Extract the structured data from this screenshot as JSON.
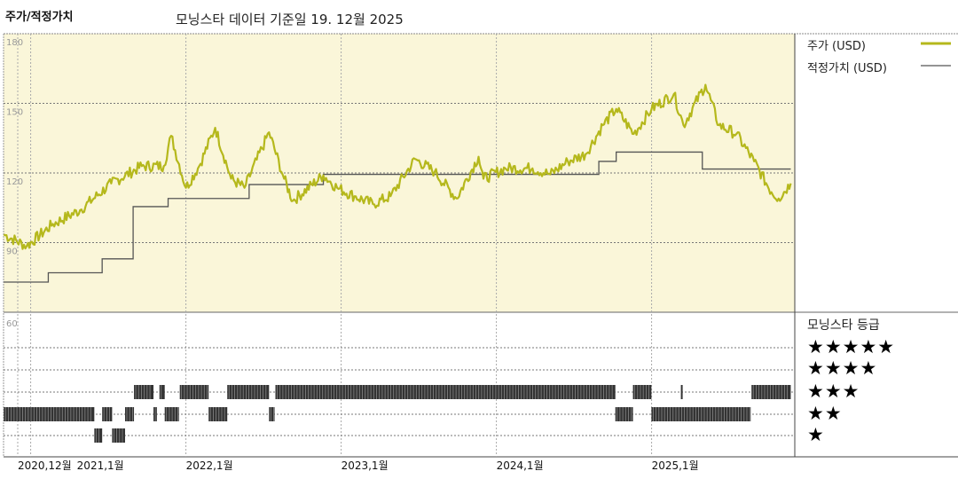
{
  "header": {
    "title": "주가/적정가치",
    "subtitle": "모닝스타 데이터 기준일 19. 12월 2025"
  },
  "legend": {
    "price": "주가 (USD)",
    "fair": "적정가치 (USD)",
    "rating_title": "모닝스타 등급"
  },
  "colors": {
    "price": "#b5b81c",
    "fair": "#555555",
    "panel_bg": "#faf6d9",
    "bars": "#333333"
  },
  "chart_data": [
    {
      "type": "line",
      "ylim": [
        60,
        180
      ],
      "yticks": [
        "180",
        "150",
        "120",
        "90"
      ],
      "ytick_values": [
        180,
        150,
        120,
        90
      ],
      "xticks": [
        "2020,12월",
        "2021,1월",
        "2022,1월",
        "2023,1월",
        "2024,1월",
        "2025,1월"
      ],
      "xtick_dates": [
        "2020-12-01",
        "2021-01-01",
        "2022-01-01",
        "2023-01-01",
        "2024-01-01",
        "2025-01-01"
      ],
      "grid": true,
      "series": [
        {
          "name": "주가 (USD)",
          "points": [
            [
              "2020-10-29",
              93.5
            ],
            [
              "2020-12-22",
              88.5
            ],
            [
              "2021-02-23",
              98
            ],
            [
              "2021-04-26",
              104
            ],
            [
              "2021-07-08",
              115.5
            ],
            [
              "2021-09-19",
              123
            ],
            [
              "2021-11-10",
              123
            ],
            [
              "2021-11-27",
              136
            ],
            [
              "2022-01-01",
              113.6
            ],
            [
              "2022-02-02",
              123
            ],
            [
              "2022-03-09",
              139.5
            ],
            [
              "2022-04-16",
              117.5
            ],
            [
              "2022-05-17",
              113.6
            ],
            [
              "2022-07-14",
              137.5
            ],
            [
              "2022-08-19",
              117.5
            ],
            [
              "2022-09-09",
              108
            ],
            [
              "2022-11-20",
              119
            ],
            [
              "2022-12-22",
              113.6
            ],
            [
              "2023-02-02",
              110
            ],
            [
              "2023-03-15",
              106.6
            ],
            [
              "2023-04-26",
              110
            ],
            [
              "2023-06-23",
              126
            ],
            [
              "2023-08-08",
              120.5
            ],
            [
              "2023-09-29",
              109
            ],
            [
              "2023-11-20",
              127
            ],
            [
              "2023-12-01",
              117.5
            ],
            [
              "2024-01-22",
              122
            ],
            [
              "2024-03-25",
              122
            ],
            [
              "2024-05-06",
              119.4
            ],
            [
              "2024-06-17",
              125
            ],
            [
              "2024-07-28",
              128
            ],
            [
              "2024-09-08",
              140.6
            ],
            [
              "2024-10-09",
              147.6
            ],
            [
              "2024-11-20",
              136.8
            ],
            [
              "2025-01-01",
              147.6
            ],
            [
              "2025-02-23",
              154
            ],
            [
              "2025-03-15",
              140.6
            ],
            [
              "2025-05-06",
              158
            ],
            [
              "2025-06-07",
              140.6
            ],
            [
              "2025-07-18",
              136.8
            ],
            [
              "2025-08-29",
              125
            ],
            [
              "2025-10-09",
              111.7
            ],
            [
              "2025-10-26",
              109
            ],
            [
              "2025-11-24",
              115.5
            ]
          ]
        },
        {
          "name": "적정가치 (USD)",
          "steps": [
            [
              "2020-10-29",
              73
            ],
            [
              "2021-02-12",
              77
            ],
            [
              "2021-06-17",
              83
            ],
            [
              "2021-08-29",
              105.5
            ],
            [
              "2021-11-20",
              109
            ],
            [
              "2022-05-28",
              115
            ],
            [
              "2022-11-20",
              119.4
            ],
            [
              "2024-08-29",
              125
            ],
            [
              "2024-10-09",
              129
            ],
            [
              "2025-04-29",
              121.7
            ],
            [
              "2025-11-24",
              121.7
            ]
          ]
        }
      ]
    },
    {
      "type": "rating-timeline",
      "ytick": "60",
      "levels": [
        "★★★★★",
        "★★★★",
        "★★★",
        "★★",
        "★"
      ],
      "segments": [
        [
          "2020-10-29",
          "2021-05-29",
          2
        ],
        [
          "2021-05-29",
          "2021-06-17",
          1
        ],
        [
          "2021-06-17",
          "2021-07-10",
          2
        ],
        [
          "2021-07-10",
          "2021-08-10",
          1
        ],
        [
          "2021-08-10",
          "2021-08-31",
          2
        ],
        [
          "2021-08-31",
          "2021-10-16",
          3
        ],
        [
          "2021-10-16",
          "2021-10-24",
          2
        ],
        [
          "2021-10-30",
          "2021-11-12",
          3
        ],
        [
          "2021-11-12",
          "2021-12-15",
          2
        ],
        [
          "2021-12-17",
          "2022-02-24",
          3
        ],
        [
          "2022-02-24",
          "2022-04-07",
          2
        ],
        [
          "2022-04-07",
          "2022-07-14",
          3
        ],
        [
          "2022-07-14",
          "2022-07-27",
          2
        ],
        [
          "2022-07-29",
          "2024-10-07",
          3
        ],
        [
          "2024-10-07",
          "2024-11-18",
          2
        ],
        [
          "2024-11-18",
          "2024-12-31",
          3
        ],
        [
          "2024-12-31",
          "2025-08-21",
          2
        ],
        [
          "2025-03-09",
          "2025-03-13",
          3
        ],
        [
          "2025-08-23",
          "2025-11-24",
          3
        ]
      ]
    }
  ]
}
